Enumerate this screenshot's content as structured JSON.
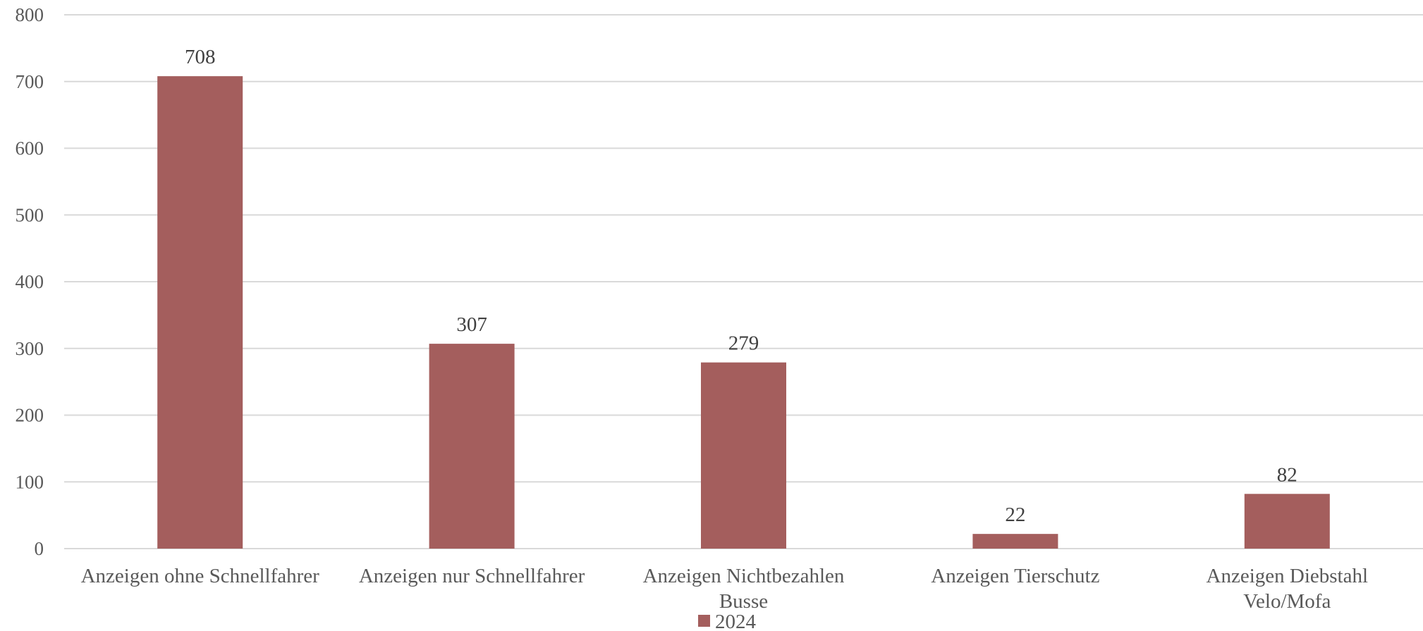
{
  "chart_data": {
    "type": "bar",
    "categories": [
      [
        "Anzeigen ohne Schnellfahrer"
      ],
      [
        "Anzeigen nur Schnellfahrer"
      ],
      [
        "Anzeigen Nichtbezahlen",
        "Busse"
      ],
      [
        "Anzeigen Tierschutz"
      ],
      [
        "Anzeigen Diebstahl",
        "Velo/Mofa"
      ]
    ],
    "series": [
      {
        "name": "2024",
        "values": [
          708,
          307,
          279,
          22,
          82
        ],
        "color": "#a45e5d"
      }
    ],
    "ylim": [
      0,
      800
    ],
    "yticks": [
      0,
      100,
      200,
      300,
      400,
      500,
      600,
      700,
      800
    ],
    "grid": true,
    "legend": "bottom-center",
    "title": "",
    "xlabel": "",
    "ylabel": ""
  }
}
